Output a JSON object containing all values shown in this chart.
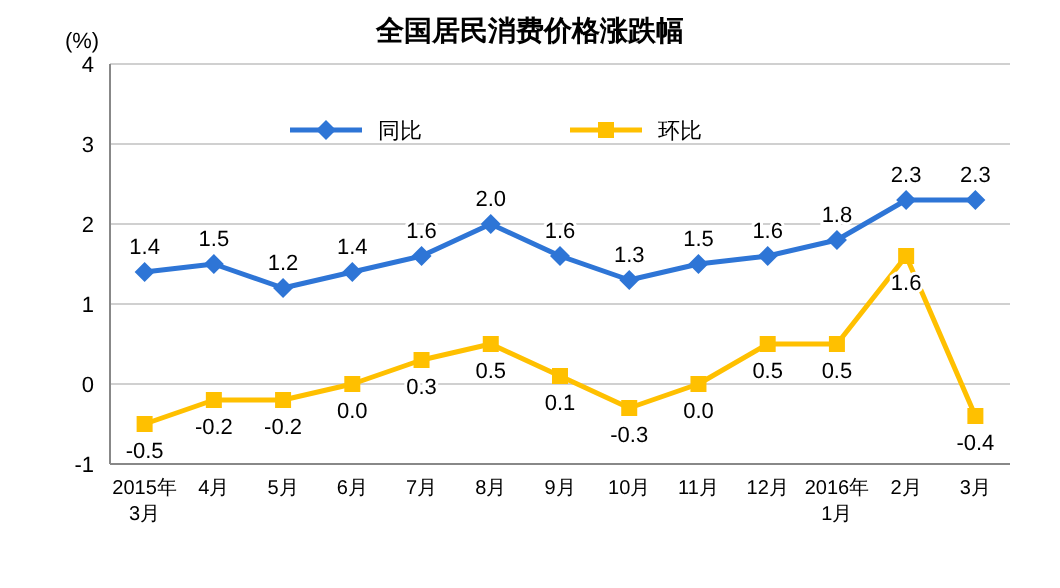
{
  "chart_data": {
    "type": "line",
    "title": "全国居民消费价格涨跌幅",
    "ylabel": "(%)",
    "categories": [
      "2015年\n3月",
      "4月",
      "5月",
      "6月",
      "7月",
      "8月",
      "9月",
      "10月",
      "11月",
      "12月",
      "2016年\n1月",
      "2月",
      "3月"
    ],
    "series": [
      {
        "name": "同比",
        "color": "#2e75d6",
        "marker": "diamond",
        "values": [
          1.4,
          1.5,
          1.2,
          1.4,
          1.6,
          2.0,
          1.6,
          1.3,
          1.5,
          1.6,
          1.8,
          2.3,
          2.3
        ],
        "value_labels": [
          "1.4",
          "1.5",
          "1.2",
          "1.4",
          "1.6",
          "2.0",
          "1.6",
          "1.3",
          "1.5",
          "1.6",
          "1.8",
          "2.3",
          "2.3"
        ]
      },
      {
        "name": "环比",
        "color": "#ffc000",
        "marker": "square",
        "values": [
          -0.5,
          -0.2,
          -0.2,
          0.0,
          0.3,
          0.5,
          0.1,
          -0.3,
          0.0,
          0.5,
          0.5,
          1.6,
          -0.4
        ],
        "value_labels": [
          "-0.5",
          "-0.2",
          "-0.2",
          "0.0",
          "0.3",
          "0.5",
          "0.1",
          "-0.3",
          "0.0",
          "0.5",
          "0.5",
          "1.6",
          "-0.4"
        ]
      }
    ],
    "ylim": [
      -1,
      4
    ],
    "yticks": [
      -1,
      0,
      1,
      2,
      3,
      4
    ],
    "grid": "y",
    "legend": "top",
    "line_style": "solid"
  }
}
